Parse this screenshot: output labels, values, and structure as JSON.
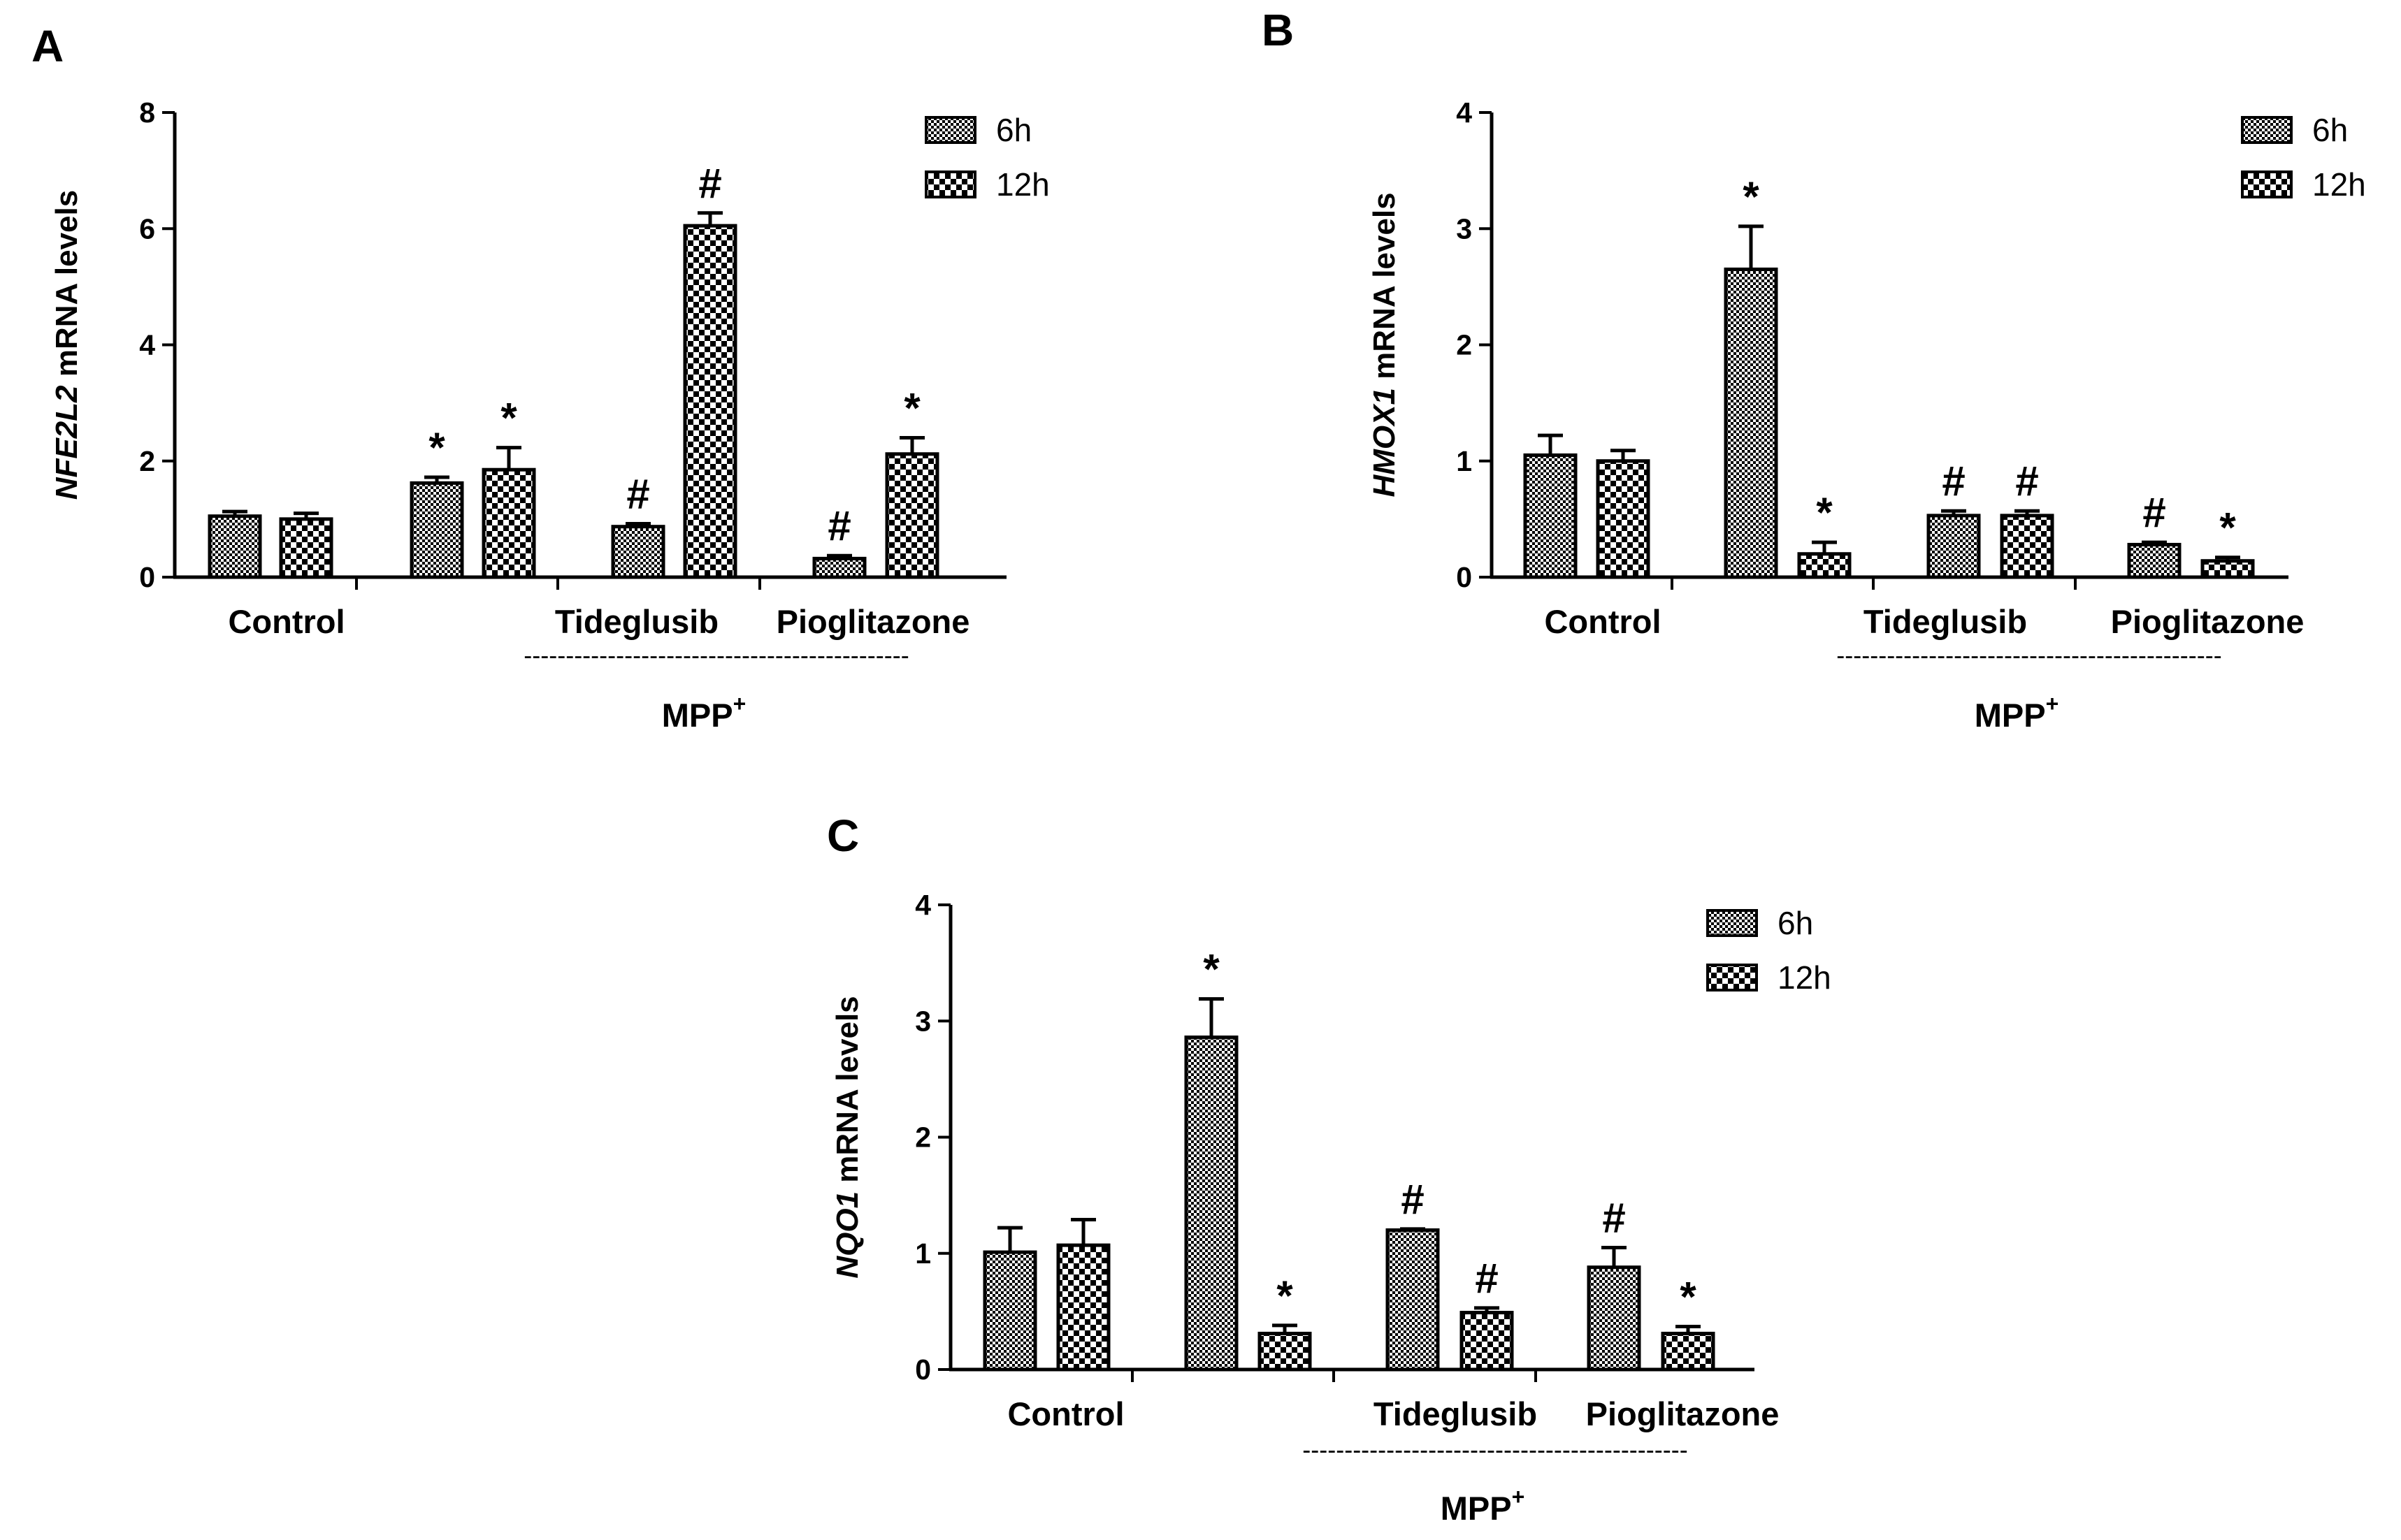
{
  "chart_data": [
    {
      "type": "bar",
      "panel": "A",
      "ylabel_italic": "NFE2L2",
      "ylabel_rest": " mRNA levels",
      "ylim": [
        0,
        8
      ],
      "yticks": [
        "0",
        "2",
        "4",
        "6",
        "8"
      ],
      "group_labels": [
        "Control",
        "",
        "Tideglusib",
        "Pioglitazone"
      ],
      "bracket_dashes": "----------------------------------------------",
      "bracket_label": "MPP",
      "bracket_sup": "+",
      "legend": [
        "6h",
        "12h"
      ],
      "series": [
        {
          "name": "6h",
          "values": [
            1.05,
            1.62,
            0.87,
            0.32
          ],
          "errors": [
            0.08,
            0.1,
            0.05,
            0.05
          ],
          "marks": [
            "",
            "*",
            "#",
            "#"
          ]
        },
        {
          "name": "12h",
          "values": [
            1.0,
            1.85,
            6.05,
            2.12
          ],
          "errors": [
            0.1,
            0.38,
            0.22,
            0.28
          ],
          "marks": [
            "",
            "*",
            "#",
            "*"
          ]
        }
      ]
    },
    {
      "type": "bar",
      "panel": "B",
      "ylabel_italic": "HMOX1",
      "ylabel_rest": " mRNA levels",
      "ylim": [
        0,
        4
      ],
      "yticks": [
        "0",
        "1",
        "2",
        "3",
        "4"
      ],
      "group_labels": [
        "Control",
        "",
        "Tideglusib",
        "Pioglitazone"
      ],
      "bracket_dashes": "----------------------------------------------",
      "bracket_label": "MPP",
      "bracket_sup": "+",
      "legend": [
        "6h",
        "12h"
      ],
      "series": [
        {
          "name": "6h",
          "values": [
            1.05,
            2.65,
            0.53,
            0.28
          ],
          "errors": [
            0.17,
            0.37,
            0.04,
            0.02
          ],
          "marks": [
            "",
            "*",
            "#",
            "#"
          ]
        },
        {
          "name": "12h",
          "values": [
            1.0,
            0.2,
            0.53,
            0.14
          ],
          "errors": [
            0.09,
            0.1,
            0.04,
            0.03
          ],
          "marks": [
            "",
            "*",
            "#",
            "*"
          ]
        }
      ]
    },
    {
      "type": "bar",
      "panel": "C",
      "ylabel_italic": "NQO1",
      "ylabel_rest": " mRNA levels",
      "ylim": [
        0,
        4
      ],
      "yticks": [
        "0",
        "1",
        "2",
        "3",
        "4"
      ],
      "group_labels": [
        "Control",
        "",
        "Tideglusib",
        "Pioglitazone"
      ],
      "bracket_dashes": "----------------------------------------------",
      "bracket_label": "MPP",
      "bracket_sup": "+",
      "legend": [
        "6h",
        "12h"
      ],
      "series": [
        {
          "name": "6h",
          "values": [
            1.01,
            2.86,
            1.2,
            0.88
          ],
          "errors": [
            0.21,
            0.33,
            0.01,
            0.17
          ],
          "marks": [
            "",
            "*",
            "#",
            "#"
          ]
        },
        {
          "name": "12h",
          "values": [
            1.07,
            0.31,
            0.49,
            0.31
          ],
          "errors": [
            0.22,
            0.07,
            0.04,
            0.06
          ],
          "marks": [
            "",
            "*",
            "#",
            "*"
          ]
        }
      ]
    }
  ]
}
